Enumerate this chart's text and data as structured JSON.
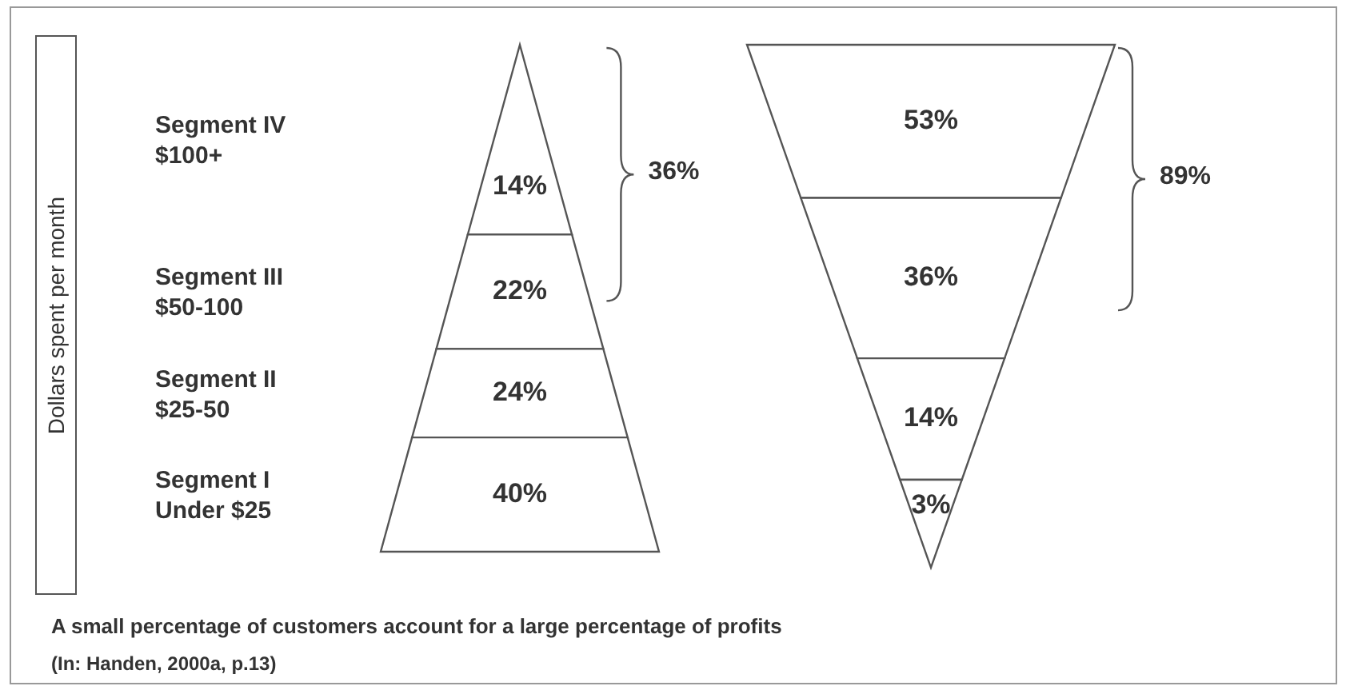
{
  "chart_data": {
    "type": "other",
    "ylabel": "Dollars spent per month",
    "categories": [
      "Segment IV\n$100+",
      "Segment III\n$50-100",
      "Segment II\n$25-50",
      "Segment I\nUnder $25"
    ],
    "series": [
      {
        "values": [
          14,
          22,
          24,
          40
        ],
        "value_labels": [
          "14%",
          "22%",
          "24%",
          "40%"
        ]
      },
      {
        "values": [
          53,
          36,
          14,
          3
        ],
        "value_labels": [
          "53%",
          "36%",
          "14%",
          "3%"
        ]
      }
    ],
    "annotations": [
      "36%",
      "89%",
      "A small percentage of customers account for a large percentage of profits",
      "(In: Handen, 2000a, p.13)"
    ]
  }
}
